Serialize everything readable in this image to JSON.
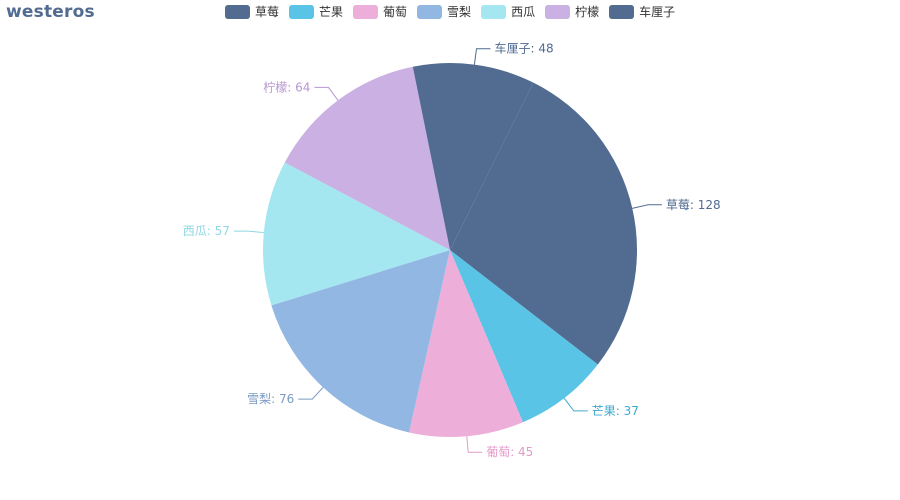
{
  "chart_data": {
    "type": "pie",
    "title": "westeros",
    "legend_position": "top",
    "slices": [
      {
        "name": "草莓",
        "value": 128,
        "color": "#516b91"
      },
      {
        "name": "芒果",
        "value": 37,
        "color": "#59c4e6"
      },
      {
        "name": "葡萄",
        "value": 45,
        "color": "#edafda"
      },
      {
        "name": "雪梨",
        "value": 76,
        "color": "#93b7e3"
      },
      {
        "name": "西瓜",
        "value": 57,
        "color": "#a5e7f0"
      },
      {
        "name": "柠檬",
        "value": 64,
        "color": "#cbb0e3"
      },
      {
        "name": "车厘子",
        "value": 48,
        "color": "#516b91"
      }
    ],
    "label_colors": {
      "草莓": "#516b91",
      "芒果": "#3fa9cf",
      "葡萄": "#e59ac9",
      "雪梨": "#7a9bc4",
      "西瓜": "#8fd7e2",
      "柠檬": "#b898d4",
      "车厘子": "#516b91"
    }
  }
}
